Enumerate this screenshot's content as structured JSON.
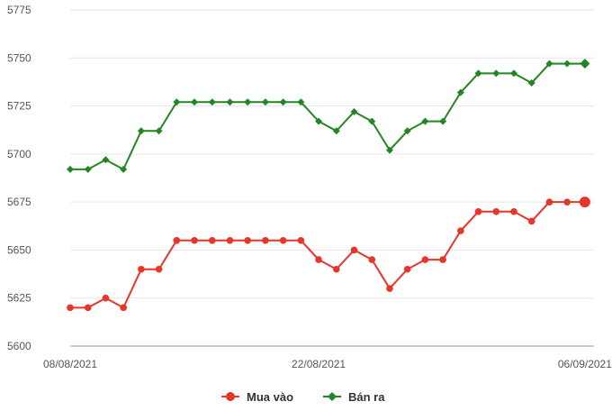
{
  "chart_data": {
    "type": "line",
    "title": "",
    "xlabel": "",
    "ylabel": "",
    "ylim": [
      5600,
      5775
    ],
    "yticks": [
      5600,
      5625,
      5650,
      5675,
      5700,
      5725,
      5750,
      5775
    ],
    "x_tick_labels": [
      "08/08/2021",
      "22/08/2021",
      "06/09/2021"
    ],
    "x_tick_index": [
      0,
      14,
      29
    ],
    "grid": "horizontal",
    "legend_position": "bottom-center",
    "series": [
      {
        "name": "Mua vào",
        "color": "#e8352a",
        "marker": "circle",
        "values": [
          5620,
          5620,
          5625,
          5620,
          5640,
          5640,
          5655,
          5655,
          5655,
          5655,
          5655,
          5655,
          5655,
          5655,
          5645,
          5640,
          5650,
          5645,
          5630,
          5640,
          5645,
          5645,
          5660,
          5670,
          5670,
          5670,
          5665,
          5675,
          5675,
          5675
        ]
      },
      {
        "name": "Bán ra",
        "color": "#238523",
        "marker": "diamond",
        "values": [
          5692,
          5692,
          5697,
          5692,
          5712,
          5712,
          5727,
          5727,
          5727,
          5727,
          5727,
          5727,
          5727,
          5727,
          5717,
          5712,
          5722,
          5717,
          5702,
          5712,
          5717,
          5717,
          5732,
          5742,
          5742,
          5742,
          5737,
          5747,
          5747,
          5747
        ]
      }
    ]
  }
}
